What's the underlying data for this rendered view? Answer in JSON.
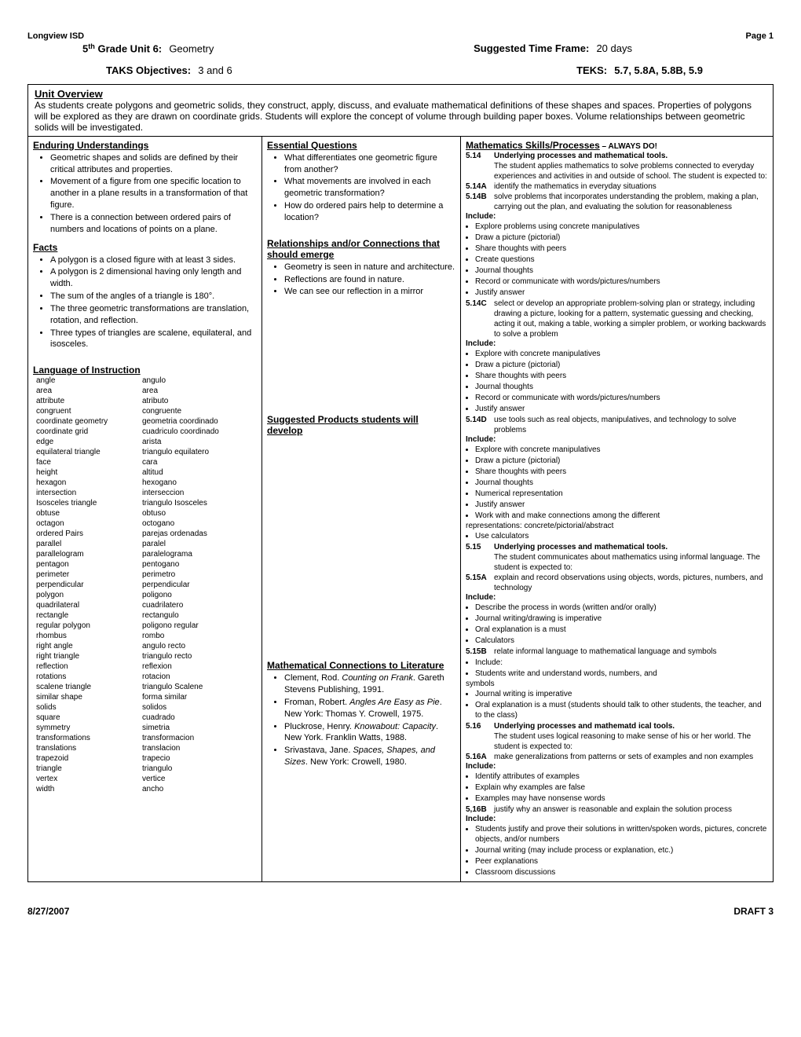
{
  "header": {
    "district": "Longview ISD",
    "page": "Page 1"
  },
  "titleRow": {
    "unitLabel": "5",
    "unitSuper": "th",
    "unitRest": " Grade Unit 6:",
    "unitName": "Geometry",
    "timeLabel": "Suggested Time Frame:",
    "timeValue": "20 days"
  },
  "objectivesRow": {
    "taksLabel": "TAKS Objectives:",
    "taksValue": "3 and 6",
    "teksLabel": "TEKS:",
    "teksValue": "5.7, 5.8A, 5.8B, 5.9"
  },
  "overview": {
    "title": "Unit Overview",
    "text": "As students create polygons and geometric solids, they construct, apply, discuss, and evaluate mathematical definitions of these shapes and spaces.  Properties of polygons will be explored as they are drawn on coordinate grids.  Students will explore the concept of volume through building paper boxes.  Volume relationships between geometric solids will be investigated."
  },
  "col1": {
    "enduringTitle": "Enduring Understandings",
    "enduring": [
      "Geometric shapes and solids are defined by their critical attributes and properties.",
      "Movement of a figure from one specific location to another in a plane results in a transformation of that figure.",
      "There is a connection between ordered pairs of numbers and locations of points on a plane."
    ],
    "factsTitle": "Facts",
    "facts": [
      "A polygon is a closed figure with at least 3 sides.",
      "A polygon is 2 dimensional having only length and width.",
      "The sum of the angles of a triangle is 180°.",
      "The three geometric transformations are translation, rotation, and reflection.",
      "Three types of triangles are scalene, equilateral, and isosceles."
    ],
    "langTitle": "Language of Instruction",
    "vocab": [
      [
        "angle",
        "angulo"
      ],
      [
        "area",
        "area"
      ],
      [
        "attribute",
        "atributo"
      ],
      [
        "congruent",
        "congruente"
      ],
      [
        "coordinate geometry",
        "geometria coordinado"
      ],
      [
        "coordinate grid",
        "cuadriculo coordinado"
      ],
      [
        "edge",
        "arista"
      ],
      [
        "equilateral triangle",
        "triangulo equilatero"
      ],
      [
        "face",
        "cara"
      ],
      [
        "height",
        "altitud"
      ],
      [
        "hexagon",
        "hexogano"
      ],
      [
        "intersection",
        "interseccion"
      ],
      [
        "Isosceles triangle",
        "triangulo Isosceles"
      ],
      [
        "obtuse",
        "obtuso"
      ],
      [
        "octagon",
        "octogano"
      ],
      [
        "ordered Pairs",
        "parejas ordenadas"
      ],
      [
        "parallel",
        "paralel"
      ],
      [
        "parallelogram",
        "paralelograma"
      ],
      [
        "pentagon",
        "pentogano"
      ],
      [
        "perimeter",
        "perimetro"
      ],
      [
        "perpendicular",
        "perpendicular"
      ],
      [
        "polygon",
        "poligono"
      ],
      [
        "quadrilateral",
        "cuadrilatero"
      ],
      [
        "rectangle",
        "rectangulo"
      ],
      [
        "regular polygon",
        "poligono regular"
      ],
      [
        "rhombus",
        "rombo"
      ],
      [
        "right angle",
        "angulo recto"
      ],
      [
        "right triangle",
        "triangulo recto"
      ],
      [
        "reflection",
        "reflexion"
      ],
      [
        "rotations",
        "rotacion"
      ],
      [
        "scalene triangle",
        "triangulo Scalene"
      ],
      [
        "similar shape",
        "forma similar"
      ],
      [
        "solids",
        "solidos"
      ],
      [
        "square",
        "cuadrado"
      ],
      [
        "symmetry",
        "simetria"
      ],
      [
        "transformations",
        "transformacion"
      ],
      [
        "translations",
        "translacion"
      ],
      [
        "trapezoid",
        "trapecio"
      ],
      [
        "triangle",
        "triangulo"
      ],
      [
        "vertex",
        "vertice"
      ],
      [
        "width",
        "ancho"
      ]
    ]
  },
  "col2": {
    "eqTitle": "Essential Questions",
    "eq": [
      "What differentiates one geometric figure from another?",
      "What movements are involved in each geometric transformation?",
      "How do ordered pairs help to determine a location?"
    ],
    "relTitle": "Relationships and/or Connections that should emerge",
    "rel": [
      "Geometry is seen in nature and architecture.",
      "Reflections are found in nature.",
      "We can see our reflection in a mirror"
    ],
    "prodTitle": "Suggested Products students will develop",
    "litTitle": "Mathematical Connections to Literature",
    "lit": [
      "Clement, Rod. Counting on Frank. Gareth Stevens Publishing, 1991.",
      "Froman, Robert. Angles Are Easy as Pie. New York: Thomas Y. Crowell, 1975.",
      "Pluckrose, Henry. Knowabout: Capacity. New York. Franklin Watts, 1988.",
      "Srivastava, Jane. Spaces, Shapes, and Sizes. New York: Crowell, 1980."
    ]
  },
  "col3": {
    "mathTitle": "Mathematics Skills/Processes",
    "always": " – ALWAYS DO!",
    "t514": {
      "num": "5.14",
      "txt": "Underlying processes and mathematical tools.\nThe student applies mathematics to solve problems connected to everyday experiences and activities in and outside of school.  The student is expected to:"
    },
    "t514A": {
      "num": "5.14A",
      "txt": "identify the mathematics in everyday situations"
    },
    "t514B": {
      "num": "5.14B",
      "txt": "solve problems that incorporates understanding the problem, making a plan, carrying out the plan, and evaluating the solution for reasonableness"
    },
    "inc1": [
      "Explore problems using concrete manipulatives",
      "Draw a picture (pictorial)",
      "Share thoughts with peers",
      "Create questions",
      "Journal thoughts",
      "Record or communicate with words/pictures/numbers",
      "Justify answer"
    ],
    "t514C": {
      "num": "5.14C",
      "txt": "select or develop an appropriate problem-solving plan or strategy, including drawing a picture, looking for a pattern, systematic guessing and checking, acting it out, making a table, working a simpler problem, or working backwards to solve a problem"
    },
    "inc2": [
      "Explore with concrete manipulatives",
      "Draw a picture (pictorial)",
      "Share thoughts with peers",
      "Journal thoughts",
      "Record or communicate with words/pictures/numbers",
      "Justify answer"
    ],
    "t514D": {
      "num": "5.14D",
      "txt": "use tools such as real objects, manipulatives, and technology to solve problems"
    },
    "inc3": [
      "Explore with concrete manipulatives",
      "Draw a picture (pictorial)",
      "Share thoughts with peers",
      "Journal thoughts",
      "Numerical representation",
      "Justify answer",
      "Work with and make connections among the different"
    ],
    "rep": "representations: concrete/pictorial/abstract",
    "calc": "Use calculators",
    "t515": {
      "num": "5.15",
      "txt": "Underlying processes and mathematical tools.\nThe student communicates about mathematics using informal language.  The student is expected to:"
    },
    "t515A": {
      "num": "5.15A",
      "txt": "explain and record observations using objects, words, pictures, numbers, and technology"
    },
    "inc4": [
      "Describe the process in words (written and/or orally)",
      "Journal writing/drawing is imperative",
      "Oral explanation is a must",
      "Calculators"
    ],
    "t515B": {
      "num": "5.15B",
      "txt": "relate informal language to mathematical language and symbols"
    },
    "incLbl5": "Include:",
    "inc5a": [
      "Students write and understand words, numbers, and"
    ],
    "sym": "symbols",
    "inc5b": [
      "Journal writing is imperative",
      "Oral explanation is a must (students should talk to other students, the teacher, and to the class)"
    ],
    "t516": {
      "num": "5.16",
      "txt": "Underlying processes and mathematd ical tools.\nThe student uses logical reasoning to make sense of his or her world. The student is expected to:"
    },
    "t516A": {
      "num": "5.16A",
      "txt": "make generalizations from patterns or sets of examples and non examples"
    },
    "inc6": [
      "Identify attributes of examples",
      "Explain why examples are false",
      "Examples may have nonsense words"
    ],
    "t516B": {
      "num": "5,16B",
      "txt": "justify why an answer is reasonable and explain the solution process"
    },
    "inc7": [
      "Students justify and prove their solutions in written/spoken words, pictures, concrete objects, and/or numbers",
      "Journal writing (may include process or explanation, etc.)",
      "Peer explanations",
      "Classroom discussions"
    ],
    "includeLabel": "Include:"
  },
  "footer": {
    "date": "8/27/2007",
    "draft": "DRAFT 3"
  }
}
